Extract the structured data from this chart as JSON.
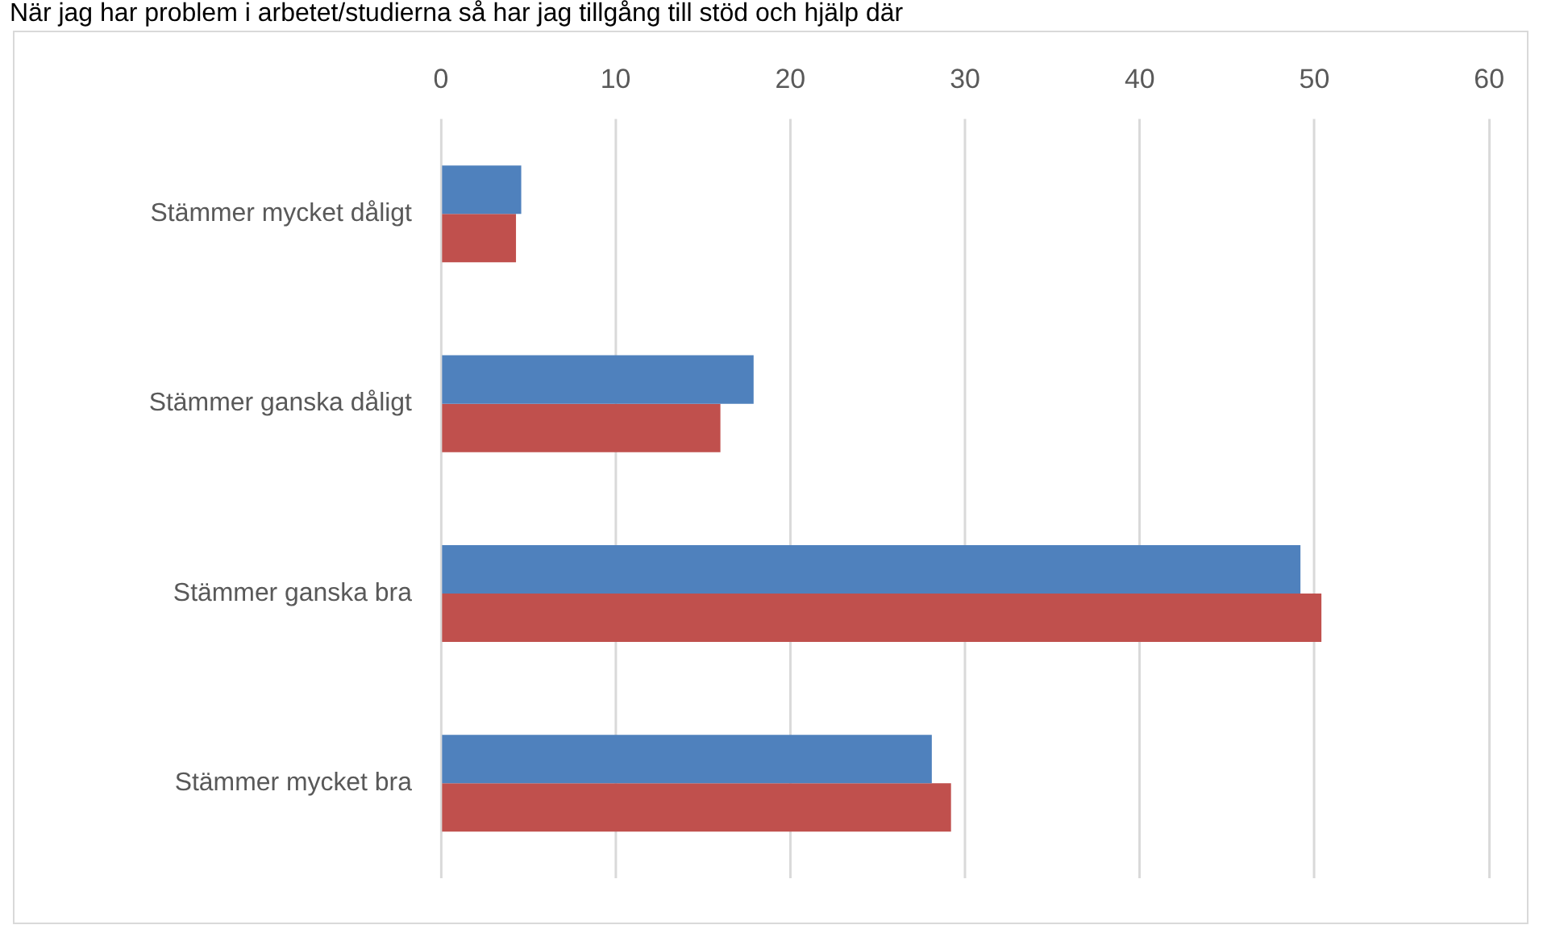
{
  "chart_data": {
    "type": "bar",
    "orientation": "horizontal",
    "title": "När jag har problem i arbetet/studierna så har jag tillgång till stöd och hjälp där",
    "categories": [
      "Stämmer mycket dåligt",
      "Stämmer ganska dåligt",
      "Stämmer ganska bra",
      "Stämmer mycket bra"
    ],
    "series": [
      {
        "color": "#4f81bd",
        "values": [
          4.6,
          17.9,
          49.2,
          28.1
        ]
      },
      {
        "color": "#c0504d",
        "values": [
          4.3,
          16.0,
          50.4,
          29.2
        ]
      }
    ],
    "xlim": [
      0,
      60
    ],
    "xticks": [
      0,
      10,
      20,
      30,
      40,
      50,
      60
    ],
    "grid": "x",
    "legend": false
  }
}
